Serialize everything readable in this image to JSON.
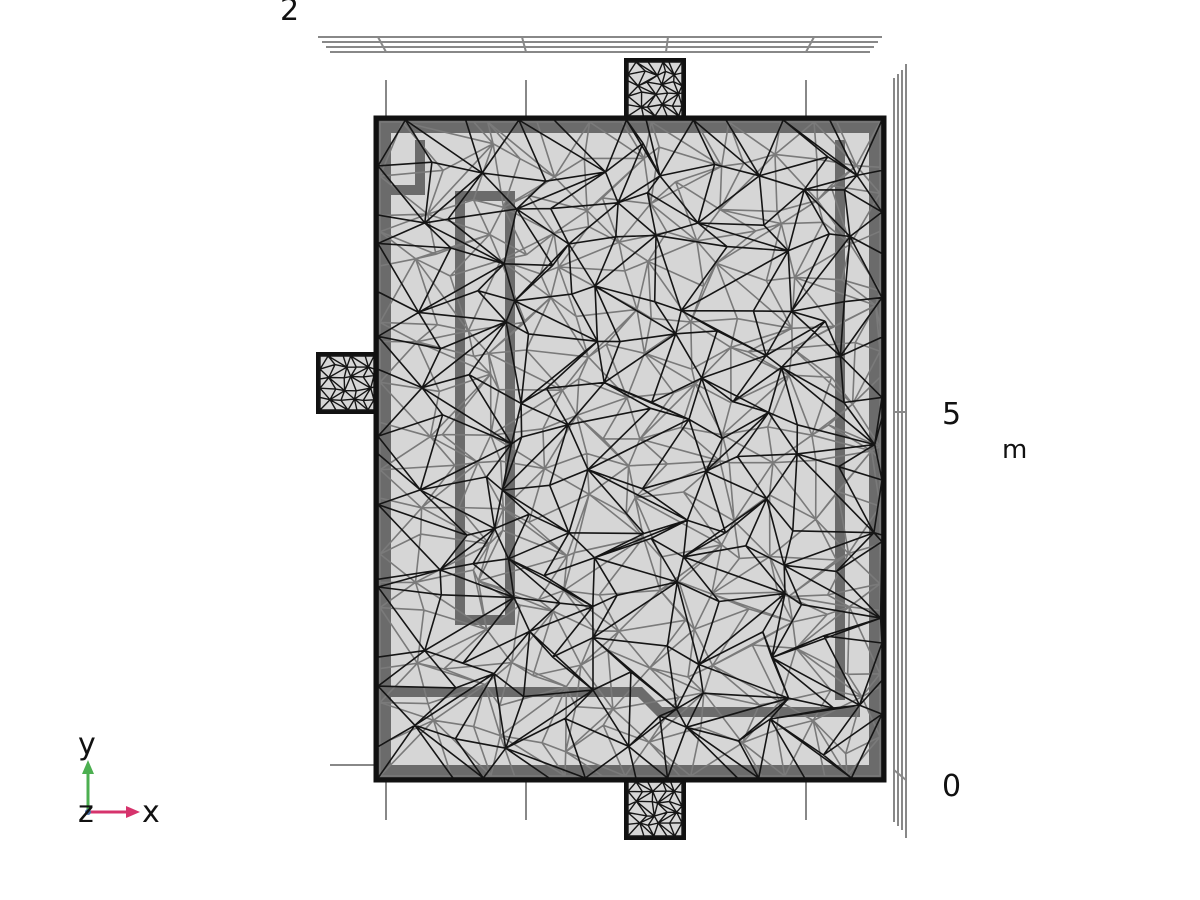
{
  "axis_labels": {
    "top_tick": "2",
    "right_tick_upper": "5",
    "right_tick_lower": "0",
    "unit": "m"
  },
  "triad": {
    "y": "y",
    "z": "z",
    "x": "x",
    "y_color": "#4caf50",
    "x_color": "#d6336c",
    "z_color": "#4a6fa5"
  },
  "colors": {
    "mesh_fill": "#d6d6d6",
    "mesh_edge_front": "#111111",
    "mesh_edge_back": "#777777",
    "frame_band": "#6b6b6b",
    "grid": "#888888"
  }
}
